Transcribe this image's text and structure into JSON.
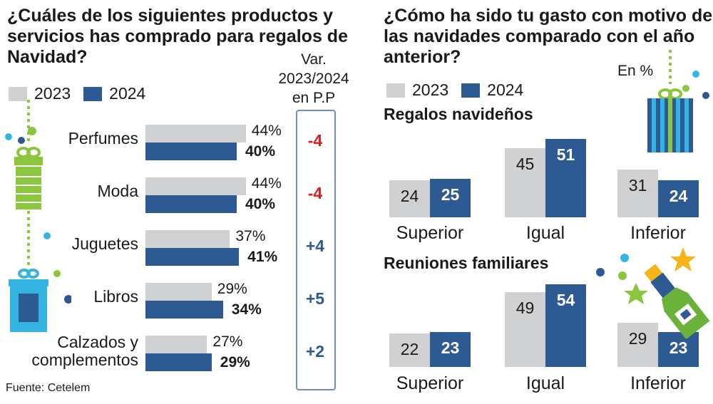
{
  "colors": {
    "y2023": "#d0d1d3",
    "y2024": "#2e5a93",
    "negative": "#d81e1e",
    "positive": "#2e5a93",
    "gift_green": "#8cc63f",
    "gift_blue": "#35b3e2"
  },
  "left": {
    "title": "¿Cuáles de los siguientes productos y servicios has comprado para regalos de Navidad?",
    "legend": {
      "a": "2023",
      "b": "2024"
    },
    "variation_header": [
      "Var.",
      "2023/2024",
      "en P.P"
    ],
    "source": "Fuente: Cetelem"
  },
  "right": {
    "title": "¿Cómo ha sido tu gasto con motivo de las navidades comparado con el año anterior?",
    "unit_note": "En %",
    "legend": {
      "a": "2023",
      "b": "2024"
    }
  },
  "chart_data": [
    {
      "type": "bar",
      "orientation": "horizontal",
      "title": "¿Cuáles de los siguientes productos y servicios has comprado para regalos de Navidad?",
      "categories": [
        "Perfumes",
        "Moda",
        "Juguetes",
        "Libros",
        "Calzados y complementos"
      ],
      "category_lines": [
        [
          "Perfumes"
        ],
        [
          "Moda"
        ],
        [
          "Juguetes"
        ],
        [
          "Libros"
        ],
        [
          "Calzados y",
          "complementos"
        ]
      ],
      "series": [
        {
          "name": "2023",
          "values": [
            44,
            44,
            37,
            29,
            27
          ],
          "labels": [
            "44%",
            "44%",
            "37%",
            "29%",
            "27%"
          ]
        },
        {
          "name": "2024",
          "values": [
            40,
            40,
            41,
            34,
            29
          ],
          "labels": [
            "40%",
            "40%",
            "41%",
            "34%",
            "29%"
          ]
        }
      ],
      "variation": {
        "title": "Var. 2023/2024 en P.P",
        "values": [
          -4,
          -4,
          4,
          5,
          2
        ],
        "labels": [
          "-4",
          "-4",
          "+4",
          "+5",
          "+2"
        ]
      },
      "unit": "%",
      "xlim": [
        0,
        50
      ]
    },
    {
      "type": "bar",
      "title": "Regalos navideños",
      "categories": [
        "Superior",
        "Igual",
        "Inferior"
      ],
      "series": [
        {
          "name": "2023",
          "values": [
            24,
            45,
            31
          ]
        },
        {
          "name": "2024",
          "values": [
            25,
            51,
            24
          ]
        }
      ],
      "unit": "%",
      "ylim": [
        0,
        60
      ]
    },
    {
      "type": "bar",
      "title": "Reuniones familiares",
      "categories": [
        "Superior",
        "Igual",
        "Inferior"
      ],
      "series": [
        {
          "name": "2023",
          "values": [
            22,
            49,
            29
          ]
        },
        {
          "name": "2024",
          "values": [
            23,
            54,
            23
          ]
        }
      ],
      "unit": "%",
      "ylim": [
        0,
        60
      ]
    }
  ]
}
